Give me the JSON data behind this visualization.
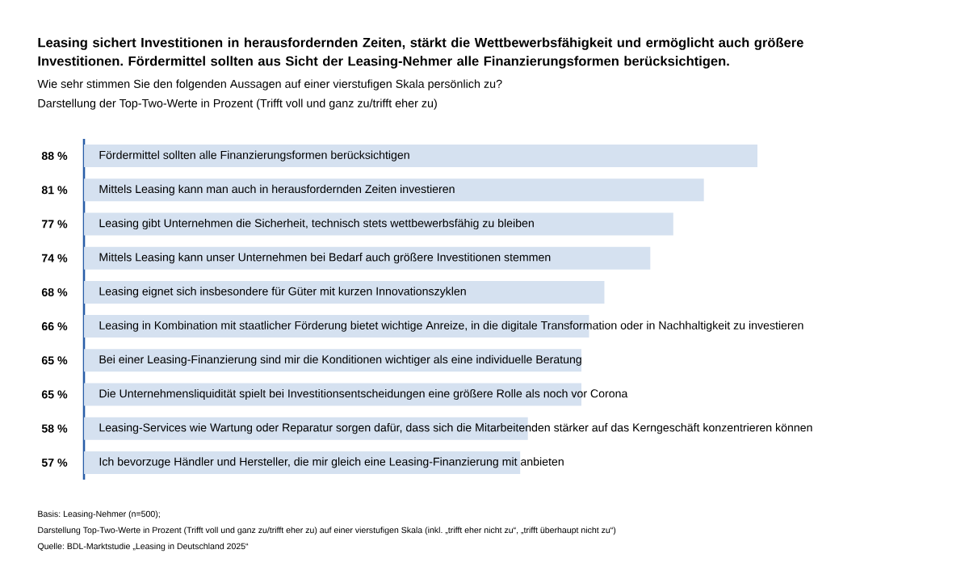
{
  "chart_data": {
    "type": "bar",
    "orientation": "horizontal",
    "title": "Leasing sichert Investitionen in herausfordernden Zeiten, stärkt die Wettbewerbsfähigkeit und ermöglicht auch größere Investitionen. Fördermittel sollten aus Sicht der Leasing-Nehmer alle Finanzierungsformen berücksichtigen.",
    "subtitle": "Wie sehr stimmen Sie den folgenden Aussagen auf einer vierstufigen Skala persönlich zu?",
    "annotations": [
      "Darstellung der Top-Two-Werte in Prozent (Trifft voll und ganz zu/trifft eher zu)",
      "Basis: Leasing-Nehmer (n=500);",
      "Darstellung Top-Two-Werte in Prozent (Trifft voll und ganz zu/trifft eher zu) auf einer vierstufigen Skala (inkl. „trifft eher nicht zu“, „trifft überhaupt nicht zu“)",
      "Quelle: BDL-Marktstudie „Leasing in Deutschland 2025“"
    ],
    "categories": [
      "Fördermittel sollten alle Finanzierungsformen berücksichtigen",
      "Mittels Leasing kann man auch in herausfordernden Zeiten investieren",
      "Leasing gibt Unternehmen die Sicherheit, technisch stets wettbewerbsfähig zu bleiben",
      "Mittels Leasing kann unser Unternehmen bei Bedarf auch größere Investitionen stemmen",
      "Leasing eignet sich insbesondere für Güter mit kurzen Innovationszyklen",
      "Leasing in Kombination mit staatlicher Förderung bietet wichtige Anreize, in die digitale Transformation oder in Nachhaltigkeit zu investieren",
      "Bei einer Leasing-Finanzierung sind mir die Konditionen wichtiger als eine individuelle Beratung",
      "Die Unternehmensliquidität spielt bei Investitionsentscheidungen eine größere Rolle als noch vor Corona",
      "Leasing-Services wie Wartung oder Reparatur sorgen dafür, dass sich die Mitarbeitenden stärker auf das Kerngeschäft konzentrieren können",
      "Ich bevorzuge Händler und Hersteller, die mir gleich eine Leasing-Finanzierung mit anbieten"
    ],
    "values": [
      88,
      81,
      77,
      74,
      68,
      66,
      65,
      65,
      58,
      57
    ],
    "value_labels": [
      "88 %",
      "81 %",
      "77 %",
      "74 %",
      "68 %",
      "66 %",
      "65 %",
      "65 %",
      "58 %",
      "57 %"
    ],
    "color": "#d5e1f0"
  }
}
